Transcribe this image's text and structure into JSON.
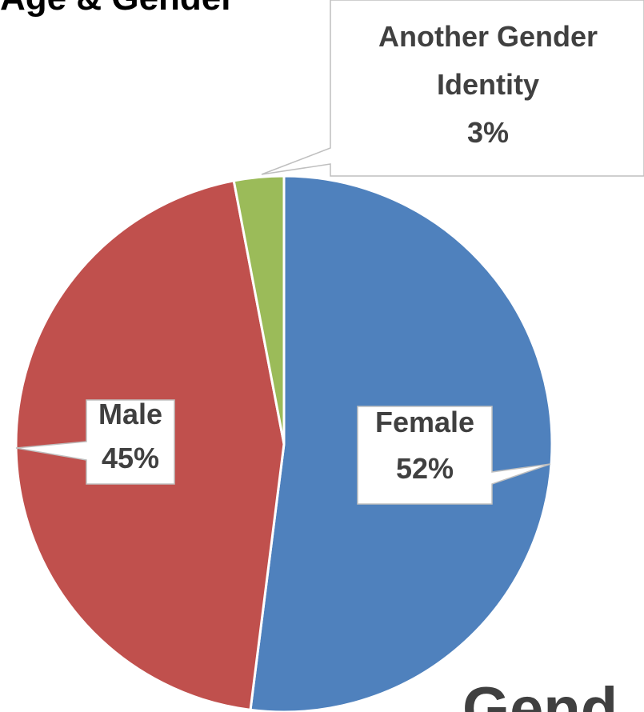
{
  "chart_data": {
    "type": "pie",
    "title": "Age & Gender",
    "footer_text": "Gend",
    "categories": [
      "Female",
      "Male",
      "Another Gender Identity"
    ],
    "values": [
      52,
      45,
      3
    ],
    "value_labels": [
      "52%",
      "45%",
      "3%"
    ],
    "colors": [
      "#4f81bd",
      "#c0504d",
      "#9bbb59"
    ]
  }
}
